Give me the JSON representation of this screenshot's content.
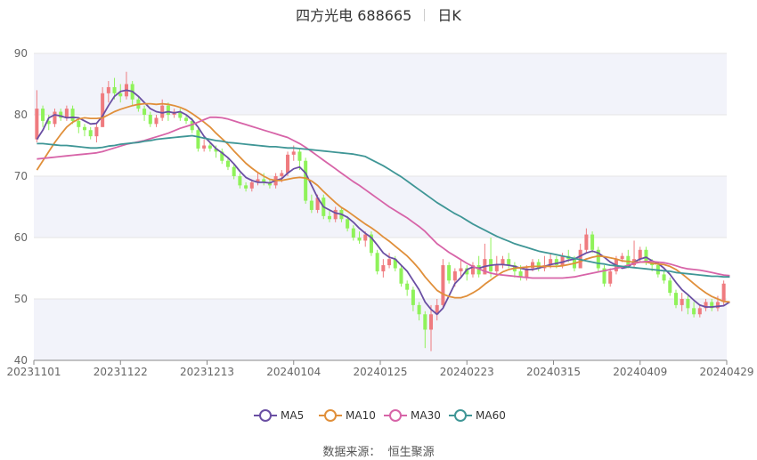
{
  "header": {
    "stock": "四方光电 688665",
    "period": "日K"
  },
  "footer": {
    "source_label": "数据来源：",
    "source_value": "恒生聚源"
  },
  "colors": {
    "up": "#ef7b7f",
    "down": "#8ff25a",
    "band": "#f2f3fa",
    "grid": "#e6e6e6",
    "ma5": "#6a4fa3",
    "ma10": "#e08f3a",
    "ma30": "#d764a8",
    "ma60": "#3f9696"
  },
  "chart_data": {
    "type": "candlestick",
    "ylim": [
      40,
      90
    ],
    "yticks": [
      40,
      50,
      60,
      70,
      80,
      90
    ],
    "xticks": [
      "20231101",
      "20231122",
      "20231213",
      "20240104",
      "20240125",
      "20240223",
      "20240315",
      "20240409",
      "20240429"
    ],
    "grid": true,
    "legend_position": "bottom",
    "legend": [
      "MA5",
      "MA10",
      "MA30",
      "MA60"
    ],
    "candles": [
      [
        76.0,
        81.0,
        84.0,
        75.5
      ],
      [
        81.0,
        79.0,
        81.5,
        78.0
      ],
      [
        79.0,
        78.5,
        80.0,
        77.5
      ],
      [
        78.5,
        80.5,
        81.0,
        78.0
      ],
      [
        80.5,
        79.5,
        81.0,
        79.0
      ],
      [
        79.5,
        81.0,
        81.5,
        79.0
      ],
      [
        81.0,
        79.0,
        81.5,
        78.5
      ],
      [
        79.0,
        78.0,
        79.5,
        77.0
      ],
      [
        78.0,
        77.5,
        78.5,
        76.5
      ],
      [
        77.5,
        76.5,
        78.0,
        76.0
      ],
      [
        76.5,
        78.0,
        78.5,
        75.5
      ],
      [
        78.0,
        83.5,
        84.5,
        78.0
      ],
      [
        83.5,
        84.5,
        85.5,
        82.0
      ],
      [
        84.5,
        83.5,
        86.0,
        82.5
      ],
      [
        83.5,
        83.0,
        85.0,
        82.0
      ],
      [
        83.0,
        85.0,
        87.0,
        82.5
      ],
      [
        85.0,
        82.5,
        85.5,
        81.5
      ],
      [
        82.5,
        81.0,
        83.0,
        80.5
      ],
      [
        81.0,
        80.0,
        81.5,
        79.0
      ],
      [
        80.0,
        78.5,
        80.5,
        78.0
      ],
      [
        78.5,
        79.5,
        80.0,
        78.0
      ],
      [
        79.5,
        81.5,
        82.5,
        79.0
      ],
      [
        81.5,
        80.0,
        82.0,
        79.0
      ],
      [
        80.0,
        80.5,
        81.0,
        79.5
      ],
      [
        80.5,
        79.5,
        81.0,
        79.0
      ],
      [
        79.5,
        79.0,
        80.0,
        78.5
      ],
      [
        79.0,
        77.5,
        79.5,
        77.0
      ],
      [
        77.5,
        74.5,
        78.0,
        74.0
      ],
      [
        74.5,
        75.0,
        76.0,
        74.0
      ],
      [
        75.0,
        74.5,
        75.5,
        74.0
      ],
      [
        74.5,
        74.0,
        75.0,
        73.0
      ],
      [
        74.0,
        72.5,
        74.5,
        72.0
      ],
      [
        72.5,
        71.5,
        73.0,
        71.0
      ],
      [
        71.5,
        70.0,
        72.0,
        69.5
      ],
      [
        70.0,
        68.5,
        70.5,
        68.0
      ],
      [
        68.5,
        68.0,
        69.0,
        67.5
      ],
      [
        68.0,
        69.0,
        69.5,
        67.5
      ],
      [
        69.0,
        69.5,
        70.5,
        68.5
      ],
      [
        69.5,
        69.0,
        70.5,
        68.5
      ],
      [
        69.0,
        68.5,
        69.5,
        68.0
      ],
      [
        68.5,
        70.0,
        70.5,
        68.0
      ],
      [
        70.0,
        70.5,
        71.0,
        69.0
      ],
      [
        70.5,
        73.5,
        74.0,
        70.0
      ],
      [
        73.5,
        74.0,
        75.0,
        72.5
      ],
      [
        74.0,
        72.5,
        74.5,
        71.0
      ],
      [
        72.5,
        66.0,
        73.0,
        65.5
      ],
      [
        66.0,
        64.5,
        67.0,
        64.0
      ],
      [
        64.5,
        66.5,
        67.0,
        64.0
      ],
      [
        66.5,
        63.5,
        67.0,
        63.0
      ],
      [
        63.5,
        63.0,
        64.5,
        62.5
      ],
      [
        63.0,
        64.5,
        65.0,
        62.5
      ],
      [
        64.5,
        63.0,
        65.0,
        62.5
      ],
      [
        63.0,
        61.5,
        63.5,
        61.0
      ],
      [
        61.5,
        60.0,
        62.0,
        59.5
      ],
      [
        60.0,
        59.5,
        61.0,
        59.0
      ],
      [
        59.5,
        60.5,
        61.0,
        58.5
      ],
      [
        60.5,
        57.5,
        61.0,
        57.0
      ],
      [
        57.5,
        54.5,
        58.0,
        54.0
      ],
      [
        54.5,
        55.5,
        56.5,
        53.5
      ],
      [
        55.5,
        56.5,
        57.5,
        55.0
      ],
      [
        56.5,
        55.0,
        57.0,
        54.5
      ],
      [
        55.0,
        52.5,
        55.5,
        52.0
      ],
      [
        52.5,
        51.5,
        53.0,
        50.5
      ],
      [
        51.5,
        49.0,
        52.0,
        48.0
      ],
      [
        49.0,
        47.5,
        49.5,
        46.5
      ],
      [
        47.5,
        45.0,
        48.0,
        42.0
      ],
      [
        45.0,
        47.5,
        49.0,
        41.5
      ],
      [
        47.5,
        49.0,
        50.0,
        46.5
      ],
      [
        49.0,
        55.5,
        56.5,
        48.5
      ],
      [
        55.5,
        53.0,
        56.0,
        52.5
      ],
      [
        53.0,
        54.5,
        55.0,
        52.0
      ],
      [
        54.5,
        55.0,
        56.5,
        53.5
      ],
      [
        55.0,
        54.0,
        55.5,
        53.0
      ],
      [
        54.0,
        55.5,
        56.0,
        53.5
      ],
      [
        55.5,
        54.0,
        57.0,
        53.5
      ],
      [
        54.0,
        56.5,
        59.0,
        54.0
      ],
      [
        56.5,
        54.5,
        60.0,
        53.5
      ],
      [
        54.5,
        55.5,
        57.0,
        54.0
      ],
      [
        55.5,
        56.5,
        57.0,
        55.0
      ],
      [
        56.5,
        55.5,
        57.5,
        55.0
      ],
      [
        55.5,
        54.5,
        56.0,
        53.5
      ],
      [
        54.5,
        53.5,
        55.5,
        53.0
      ],
      [
        53.5,
        55.0,
        55.5,
        53.0
      ],
      [
        55.0,
        56.0,
        56.5,
        54.5
      ],
      [
        56.0,
        55.0,
        56.5,
        54.5
      ],
      [
        55.0,
        55.5,
        57.0,
        54.5
      ],
      [
        55.5,
        56.5,
        57.5,
        55.0
      ],
      [
        56.5,
        55.5,
        57.0,
        55.0
      ],
      [
        55.5,
        57.0,
        57.5,
        55.0
      ],
      [
        57.0,
        56.5,
        58.0,
        56.0
      ],
      [
        56.5,
        55.0,
        57.0,
        54.5
      ],
      [
        55.0,
        58.0,
        59.0,
        55.0
      ],
      [
        58.0,
        60.5,
        61.5,
        57.5
      ],
      [
        60.5,
        58.0,
        61.0,
        57.5
      ],
      [
        58.0,
        55.0,
        58.5,
        54.5
      ],
      [
        55.0,
        52.5,
        55.5,
        52.0
      ],
      [
        52.5,
        54.5,
        55.0,
        52.0
      ],
      [
        54.5,
        56.5,
        57.0,
        54.0
      ],
      [
        56.5,
        57.0,
        57.5,
        56.0
      ],
      [
        57.0,
        55.5,
        58.0,
        55.0
      ],
      [
        55.5,
        56.5,
        59.5,
        55.0
      ],
      [
        56.5,
        58.0,
        58.5,
        56.0
      ],
      [
        58.0,
        56.0,
        58.5,
        55.5
      ],
      [
        56.0,
        55.5,
        56.5,
        54.5
      ],
      [
        55.5,
        54.0,
        56.0,
        53.5
      ],
      [
        54.0,
        53.0,
        54.5,
        52.5
      ],
      [
        53.0,
        51.0,
        53.5,
        50.5
      ],
      [
        51.0,
        49.0,
        51.5,
        48.5
      ],
      [
        49.0,
        50.0,
        51.0,
        48.0
      ],
      [
        50.0,
        48.5,
        50.5,
        47.5
      ],
      [
        48.5,
        47.5,
        49.5,
        47.0
      ],
      [
        47.5,
        48.5,
        49.0,
        47.0
      ],
      [
        48.5,
        49.5,
        50.0,
        48.0
      ],
      [
        49.5,
        48.5,
        50.0,
        48.0
      ],
      [
        48.5,
        49.5,
        50.5,
        48.0
      ],
      [
        49.5,
        52.5,
        53.0,
        49.0
      ]
    ],
    "series": [
      {
        "name": "MA5",
        "values": [
          76.0,
          77.5,
          79.5,
          80.0,
          79.8,
          79.5,
          79.6,
          79.5,
          79.0,
          78.5,
          78.6,
          79.8,
          81.5,
          83.0,
          83.8,
          84.0,
          83.8,
          83.0,
          82.0,
          81.0,
          80.5,
          80.3,
          80.5,
          80.3,
          80.5,
          80.0,
          79.2,
          78.0,
          76.5,
          75.5,
          74.5,
          73.8,
          73.0,
          72.0,
          70.8,
          69.8,
          69.3,
          69.0,
          69.0,
          68.9,
          69.3,
          69.6,
          70.5,
          71.2,
          71.5,
          70.5,
          68.5,
          66.5,
          65.0,
          64.5,
          64.0,
          63.8,
          63.3,
          62.5,
          61.5,
          60.7,
          60.0,
          58.8,
          57.5,
          56.8,
          56.5,
          55.5,
          54.5,
          53.0,
          51.5,
          49.5,
          48.3,
          47.5,
          48.5,
          50.5,
          52.5,
          53.5,
          54.8,
          55.2,
          55.0,
          55.3,
          55.5,
          55.6,
          55.6,
          55.5,
          55.3,
          55.0,
          54.8,
          54.8,
          55.0,
          55.3,
          55.6,
          55.8,
          56.0,
          56.3,
          56.5,
          57.0,
          57.5,
          57.8,
          57.5,
          56.8,
          56.0,
          55.5,
          55.0,
          55.2,
          56.0,
          56.5,
          56.8,
          56.2,
          55.8,
          55.0,
          54.0,
          52.7,
          51.5,
          50.7,
          49.8,
          49.0,
          48.7,
          48.7,
          48.8,
          48.9,
          49.5
        ]
      },
      {
        "name": "MA10",
        "values": [
          71.0,
          72.5,
          74.0,
          75.5,
          76.8,
          78.0,
          78.8,
          79.3,
          79.5,
          79.4,
          79.4,
          79.5,
          80.0,
          80.5,
          80.9,
          81.2,
          81.5,
          81.7,
          81.8,
          81.8,
          81.7,
          81.8,
          81.7,
          81.5,
          81.2,
          80.8,
          80.2,
          79.5,
          78.8,
          78.0,
          77.0,
          76.1,
          75.2,
          74.1,
          73.1,
          72.1,
          71.3,
          70.6,
          70.0,
          69.5,
          69.3,
          69.3,
          69.5,
          69.7,
          69.8,
          69.7,
          69.2,
          68.5,
          67.5,
          66.6,
          65.7,
          64.9,
          64.3,
          63.6,
          62.9,
          62.2,
          61.6,
          60.9,
          60.1,
          59.4,
          58.6,
          57.8,
          57.0,
          56.0,
          54.9,
          53.6,
          52.5,
          51.4,
          50.8,
          50.4,
          50.2,
          50.2,
          50.5,
          51.0,
          51.6,
          52.4,
          53.1,
          53.8,
          54.4,
          54.8,
          55.0,
          55.1,
          55.2,
          55.3,
          55.3,
          55.3,
          55.3,
          55.3,
          55.4,
          55.6,
          55.8,
          56.1,
          56.5,
          56.8,
          57.0,
          56.9,
          56.7,
          56.5,
          56.2,
          56.1,
          56.0,
          56.0,
          56.0,
          55.8,
          55.7,
          55.6,
          55.3,
          54.8,
          54.1,
          53.3,
          52.5,
          51.7,
          51.0,
          50.4,
          50.0,
          49.6,
          49.5
        ]
      },
      {
        "name": "MA30",
        "values": [
          72.8,
          72.9,
          73.0,
          73.1,
          73.2,
          73.3,
          73.4,
          73.5,
          73.6,
          73.7,
          73.8,
          74.0,
          74.3,
          74.6,
          74.9,
          75.2,
          75.4,
          75.6,
          75.8,
          76.1,
          76.4,
          76.7,
          77.0,
          77.4,
          77.8,
          78.1,
          78.4,
          78.8,
          79.2,
          79.6,
          79.6,
          79.5,
          79.3,
          79.0,
          78.7,
          78.4,
          78.1,
          77.8,
          77.5,
          77.2,
          76.9,
          76.6,
          76.3,
          75.8,
          75.3,
          74.7,
          74.0,
          73.3,
          72.6,
          71.9,
          71.2,
          70.5,
          69.8,
          69.1,
          68.5,
          67.8,
          67.1,
          66.4,
          65.7,
          65.0,
          64.4,
          63.8,
          63.2,
          62.5,
          61.8,
          61.0,
          60.0,
          59.0,
          58.3,
          57.6,
          57.0,
          56.4,
          55.8,
          55.3,
          54.9,
          54.5,
          54.2,
          54.0,
          53.9,
          53.8,
          53.7,
          53.6,
          53.5,
          53.4,
          53.4,
          53.4,
          53.4,
          53.4,
          53.4,
          53.5,
          53.6,
          53.8,
          54.0,
          54.2,
          54.4,
          54.6,
          54.8,
          55.0,
          55.2,
          55.5,
          55.8,
          56.0,
          56.1,
          56.1,
          56.0,
          55.9,
          55.7,
          55.4,
          55.1,
          54.9,
          54.8,
          54.7,
          54.5,
          54.3,
          54.1,
          53.9,
          53.8
        ]
      },
      {
        "name": "MA60",
        "values": [
          75.3,
          75.3,
          75.2,
          75.1,
          75.0,
          75.0,
          74.9,
          74.8,
          74.7,
          74.6,
          74.6,
          74.7,
          74.9,
          75.0,
          75.2,
          75.3,
          75.4,
          75.5,
          75.7,
          75.8,
          76.0,
          76.1,
          76.2,
          76.3,
          76.4,
          76.5,
          76.6,
          76.4,
          76.2,
          76.0,
          75.8,
          75.7,
          75.5,
          75.4,
          75.3,
          75.2,
          75.1,
          75.0,
          74.9,
          74.8,
          74.8,
          74.7,
          74.6,
          74.6,
          74.5,
          74.4,
          74.3,
          74.2,
          74.1,
          74.0,
          73.9,
          73.8,
          73.7,
          73.6,
          73.4,
          73.2,
          72.7,
          72.2,
          71.7,
          71.1,
          70.5,
          69.9,
          69.2,
          68.5,
          67.8,
          67.1,
          66.4,
          65.7,
          65.1,
          64.5,
          63.9,
          63.4,
          62.8,
          62.2,
          61.7,
          61.2,
          60.7,
          60.2,
          59.8,
          59.4,
          59.0,
          58.7,
          58.4,
          58.1,
          57.8,
          57.6,
          57.4,
          57.2,
          57.0,
          56.8,
          56.6,
          56.4,
          56.2,
          56.0,
          55.8,
          55.7,
          55.5,
          55.4,
          55.3,
          55.2,
          55.1,
          55.0,
          54.9,
          54.8,
          54.7,
          54.6,
          54.5,
          54.3,
          54.2,
          54.1,
          54.0,
          53.9,
          53.8,
          53.7,
          53.7,
          53.6,
          53.6
        ]
      }
    ]
  }
}
